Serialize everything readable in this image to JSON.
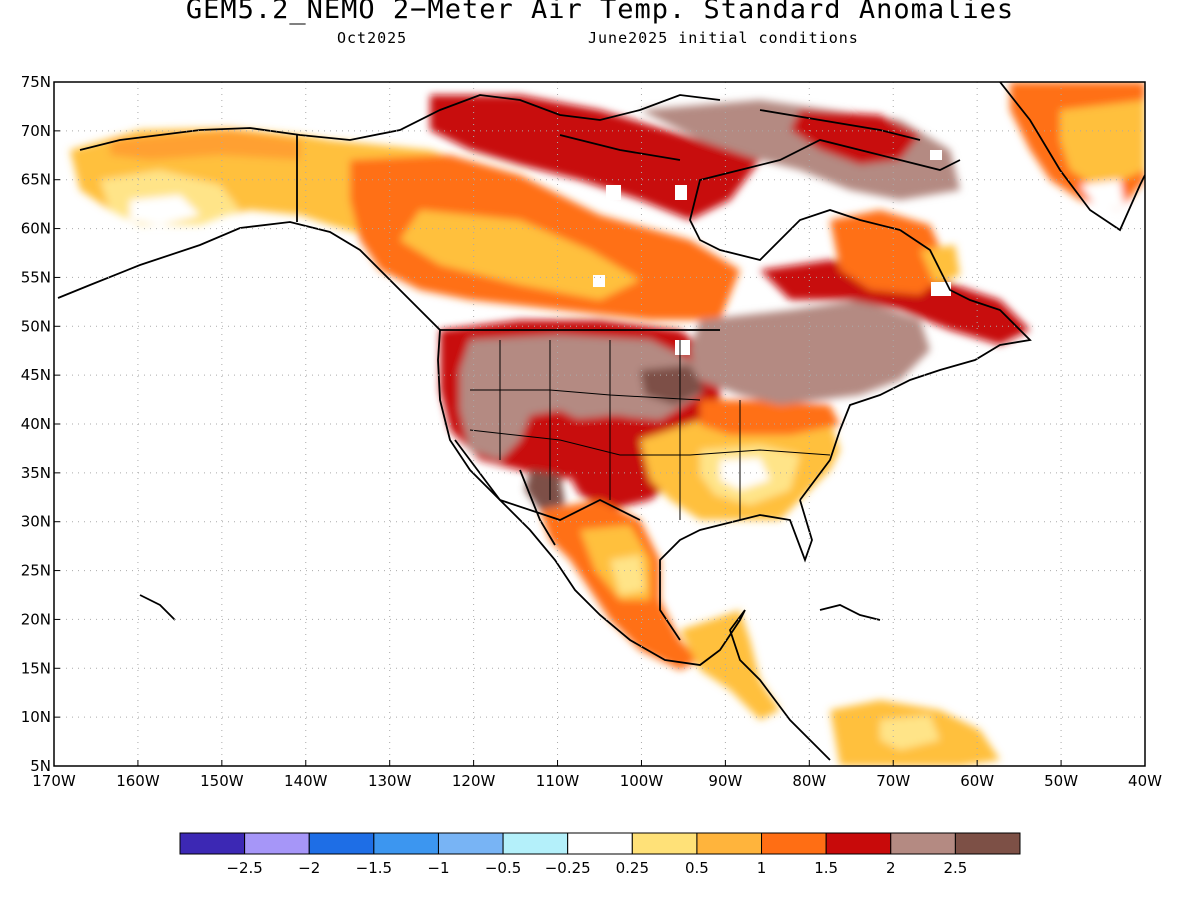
{
  "title": "GEM5.2_NEMO 2−Meter Air Temp. Standard Anomalies",
  "subtitle_left": "Oct2025",
  "subtitle_right": "June2025 initial conditions",
  "map": {
    "lat_ticks": [
      "75N",
      "70N",
      "65N",
      "60N",
      "55N",
      "50N",
      "45N",
      "40N",
      "35N",
      "30N",
      "25N",
      "20N",
      "15N",
      "10N",
      "5N"
    ],
    "lon_ticks": [
      "170W",
      "160W",
      "150W",
      "140W",
      "130W",
      "120W",
      "110W",
      "100W",
      "90W",
      "80W",
      "70W",
      "60W",
      "50W",
      "40W"
    ],
    "grid": true
  },
  "colorbar": {
    "colors": [
      "#3c28b4",
      "#a696f8",
      "#1e6ee6",
      "#3c96f0",
      "#78b4f5",
      "#b4f0fa",
      "#ffffff",
      "#ffe178",
      "#ffb43c",
      "#ff6e14",
      "#c80a0a",
      "#b48a82",
      "#7d5046"
    ],
    "labels": [
      "−2.5",
      "−2",
      "−1.5",
      "−1",
      "−0.5",
      "−0.25",
      "0.25",
      "0.5",
      "1",
      "1.5",
      "2",
      "2.5"
    ]
  }
}
